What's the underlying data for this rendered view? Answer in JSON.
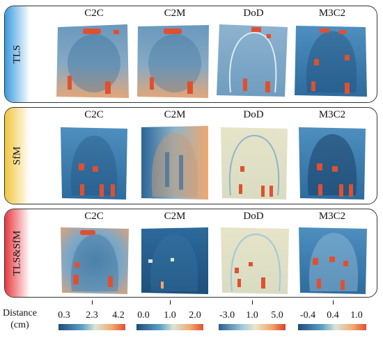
{
  "rows": [
    {
      "label": "TLS",
      "color": "#3a9be0",
      "panels": [
        "C2C",
        "C2M",
        "DoD",
        "M3C2"
      ]
    },
    {
      "label": "SfM",
      "color": "#f2c63c",
      "panels": [
        "C2C",
        "C2M",
        "DoD",
        "M3C2"
      ]
    },
    {
      "label": "TLS&SfM",
      "color": "#e8393f",
      "panels": [
        "C2C",
        "C2M",
        "DoD",
        "M3C2"
      ]
    }
  ],
  "legend": {
    "title_line1": "Distance",
    "title_line2": "(cm)",
    "scales": [
      {
        "min": "0.3",
        "mid": "2.3",
        "max": "4.2",
        "palette": "blue-orange"
      },
      {
        "min": "0.0",
        "mid": "1.0",
        "max": "2.0",
        "palette": "blue-orange"
      },
      {
        "min": "-3.0",
        "mid": "1.0",
        "max": "5.0",
        "palette": "blue-beige-red"
      },
      {
        "min": "-0.4",
        "mid": "0.4",
        "max": "1.0",
        "palette": "blue-orange"
      }
    ]
  },
  "colors": {
    "dark_blue": "#1f4e79",
    "mid_blue": "#3b85b8",
    "light_blue": "#9ec8de",
    "beige": "#e9e6c9",
    "orange": "#f0a36b",
    "red": "#e0502f"
  }
}
